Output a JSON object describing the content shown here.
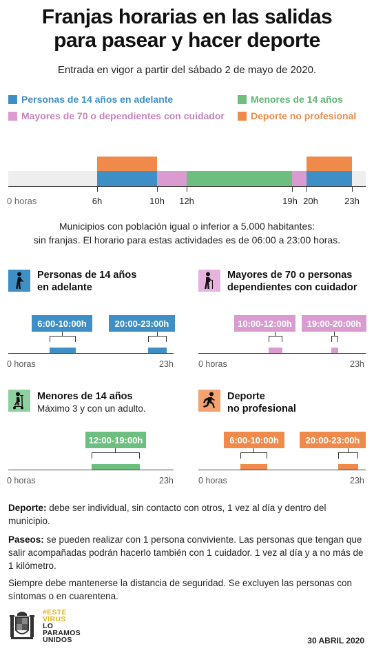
{
  "header": {
    "title_line1": "Franjas horarias en las salidas",
    "title_line2": "para pasear y hacer deporte",
    "subtitle": "Entrada en vigor a partir del sábado 2 de mayo de 2020."
  },
  "colors": {
    "blue": "#3d8fc6",
    "green": "#6cbf7f",
    "pink": "#d99bd0",
    "orange": "#f08a4b",
    "gray": "#eeeeee"
  },
  "legend": [
    {
      "label": "Personas de 14 años en adelante",
      "color": "#3d8fc6"
    },
    {
      "label": "Menores de 14 años",
      "color": "#6cbf7f"
    },
    {
      "label": "Mayores de 70 o dependientes con cuidador",
      "color": "#d99bd0"
    },
    {
      "label": "Deporte no profesional",
      "color": "#f08a4b"
    }
  ],
  "timeline": {
    "ticks": [
      "0 horas",
      "6h",
      "10h",
      "12h",
      "19h",
      "20h",
      "23h"
    ]
  },
  "note": {
    "line1": "Municipios con población igual o inferior a 5.000 habitantes:",
    "line2": "sin franjas. El horario para estas actividades es de 06:00 a 23:00 horas."
  },
  "panels": {
    "adults": {
      "title_line1": "Personas de 14 años",
      "title_line2": "en adelante",
      "slot1": "6:00-10:00h",
      "slot2": "20:00-23:00h",
      "axis_start": "0 horas",
      "axis_end": "23h",
      "icon": "walking-person-icon"
    },
    "elderly": {
      "title_line1": "Mayores de 70 o personas",
      "title_line2": "dependientes con cuidador",
      "slot1": "10:00-12:00h",
      "slot2": "19:00-20:00h",
      "axis_start": "0 horas",
      "axis_end": "23h",
      "icon": "person-with-cane-icon"
    },
    "minors": {
      "title_line1": "Menores de 14 años",
      "subtitle": "Máximo 3 y con un adulto.",
      "slot1": "12:00-19:00h",
      "axis_start": "0 horas",
      "axis_end": "23h",
      "icon": "child-scooter-icon"
    },
    "sport": {
      "title_line1": "Deporte",
      "title_line2": "no profesional",
      "slot1": "6:00-10:00h",
      "slot2": "20:00-23:00h",
      "axis_start": "0 horas",
      "axis_end": "23h",
      "icon": "running-person-icon"
    }
  },
  "paragraphs": {
    "deporte_label": "Deporte:",
    "deporte_text": " debe ser individual, sin contacto con otros, 1 vez al día y dentro del municipio.",
    "paseos_label": "Paseos:",
    "paseos_text": " se pueden realizar con 1 persona conviviente. Las personas que tengan que salir acompañadas podrán hacerlo también con 1 cuidador. 1 vez al día y a no más de 1 kilómetro.",
    "safety": "Siempre debe mantenerse la distancia de seguridad. Se excluyen las personas con síntomas o en cuarentena."
  },
  "footer": {
    "slogan_line1": "#ESTE",
    "slogan_line2": "VIRUS",
    "slogan_line3": "LO",
    "slogan_line4": "PARAMOS",
    "slogan_line5": "UNIDOS",
    "date": "30 ABRIL 2020",
    "logo": "spain-coat-of-arms-logo"
  }
}
